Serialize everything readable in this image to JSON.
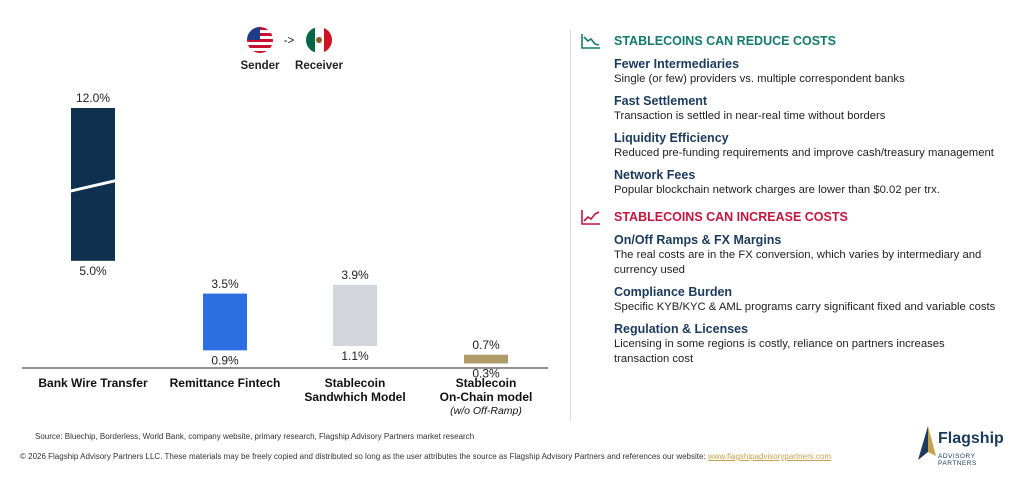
{
  "chart_data": {
    "type": "floating-bar",
    "flow": {
      "sender": "Sender",
      "arrow": "->",
      "receiver": "Receiver"
    },
    "categories": [
      "Bank Wire Transfer",
      "Remittance Fintech",
      "Stablecoin Sandwhich Model",
      "Stablecoin On-Chain model"
    ],
    "annotation": "(w/o Off-Ramp)",
    "colors": [
      "#10304f",
      "#2b6fe0",
      "#d3d5db",
      "#b09a68"
    ],
    "series": [
      {
        "values": [
          5.0,
          0.9,
          1.1,
          0.3
        ],
        "value_labels": [
          "5.0%",
          "0.9%",
          "1.1%",
          "0.3%"
        ]
      },
      {
        "values": [
          12.0,
          3.5,
          3.9,
          0.7
        ],
        "value_labels": [
          "12.0%",
          "3.5%",
          "3.9%",
          "0.7%"
        ]
      }
    ]
  },
  "panel": {
    "sections": [
      {
        "title": "STABLECOINS CAN REDUCE COSTS",
        "color": "#137a70",
        "items": [
          {
            "heading": "Fewer Intermediaries",
            "text": "Single (or few) providers vs. multiple correspondent banks"
          },
          {
            "heading": "Fast Settlement",
            "text": "Transaction is settled in near-real time without borders"
          },
          {
            "heading": "Liquidity Efficiency",
            "text": "Reduced pre-funding requirements and improve cash/treasury management"
          },
          {
            "heading": "Network Fees",
            "text": "Popular blockchain network charges are lower than $0.02 per trx."
          }
        ]
      },
      {
        "title": "STABLECOINS CAN INCREASE COSTS",
        "color": "#c4163f",
        "items": [
          {
            "heading": "On/Off Ramps & FX Margins",
            "text": "The real costs are in the FX conversion, which varies by intermediary and currency used"
          },
          {
            "heading": "Compliance Burden",
            "text": "Specific KYB/KYC & AML programs carry significant fixed and variable costs"
          },
          {
            "heading": "Regulation & Licenses",
            "text": "Licensing in some regions is costly, reliance on partners increases transaction cost"
          }
        ]
      }
    ]
  },
  "footer": {
    "source": "Source: Bluechip, Borderless, World Bank, company website, primary research, Flagship Advisory Partners market research",
    "copyright": "© 2026 Flagship Advisory Partners LLC. These materials may be freely copied and distributed so long as the user attributes the source as Flagship Advisory Partners and references our website:",
    "website": "www.flagshipadvisorypartners.com",
    "logo": "Flagship",
    "logo_sub": "ADVISORY PARTNERS"
  }
}
